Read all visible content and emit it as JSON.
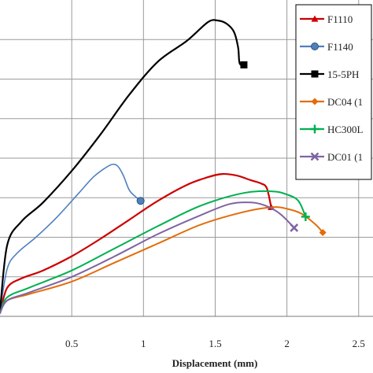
{
  "chart_data": {
    "type": "line",
    "xlabel": "Displacement (mm)",
    "ylabel": "",
    "xlim": [
      0,
      2.6
    ],
    "ylim": [
      0,
      20
    ],
    "x_ticks": [
      0.5,
      1,
      1.5,
      2,
      2.5
    ],
    "x_tick_labels": [
      "0.5",
      "1",
      "1.5",
      "2",
      "2.5"
    ],
    "grid": true,
    "legend_position": "top-right",
    "series": [
      {
        "name": "F1110",
        "color": "#cc0000",
        "marker": "triangle",
        "x": [
          0,
          0.05,
          0.15,
          0.3,
          0.5,
          0.7,
          0.9,
          1.1,
          1.3,
          1.45,
          1.55,
          1.65,
          1.75,
          1.82,
          1.86,
          1.89
        ],
        "y": [
          0.2,
          1.8,
          2.4,
          2.9,
          3.8,
          4.9,
          6.1,
          7.3,
          8.3,
          8.8,
          9.0,
          8.9,
          8.6,
          8.4,
          8.1,
          6.9
        ]
      },
      {
        "name": "F1140",
        "color": "#4f81bd",
        "marker": "circle",
        "x": [
          0,
          0.05,
          0.12,
          0.25,
          0.4,
          0.55,
          0.65,
          0.72,
          0.78,
          0.82,
          0.86,
          0.9,
          0.94,
          0.98
        ],
        "y": [
          0.3,
          3.0,
          4.0,
          5.0,
          6.3,
          7.8,
          8.8,
          9.3,
          9.6,
          9.5,
          8.9,
          8.0,
          7.6,
          7.3
        ]
      },
      {
        "name": "15-5PH",
        "color": "#000000",
        "marker": "square",
        "x": [
          0,
          0.05,
          0.15,
          0.3,
          0.5,
          0.7,
          0.9,
          1.1,
          1.3,
          1.45,
          1.52,
          1.58,
          1.63,
          1.66,
          1.67,
          1.7
        ],
        "y": [
          0.3,
          4.5,
          6.0,
          7.2,
          9.2,
          11.5,
          14.0,
          16.1,
          17.4,
          18.6,
          18.7,
          18.5,
          18.0,
          17.0,
          16.0,
          15.9
        ]
      },
      {
        "name": "DC04 (1",
        "color": "#e36c09",
        "marker": "diamond",
        "x": [
          0,
          0.05,
          0.2,
          0.5,
          0.8,
          1.1,
          1.4,
          1.7,
          1.9,
          2.0,
          2.1,
          2.2,
          2.25
        ],
        "y": [
          0.2,
          1.0,
          1.4,
          2.2,
          3.4,
          4.6,
          5.8,
          6.6,
          6.9,
          6.8,
          6.5,
          5.8,
          5.3
        ]
      },
      {
        "name": "HC300L",
        "color": "#00b050",
        "marker": "plus",
        "x": [
          0,
          0.05,
          0.2,
          0.5,
          0.8,
          1.1,
          1.4,
          1.7,
          1.9,
          2.0,
          2.08,
          2.13
        ],
        "y": [
          0.2,
          1.2,
          1.8,
          2.9,
          4.3,
          5.7,
          7.0,
          7.8,
          7.9,
          7.7,
          7.3,
          6.3
        ]
      },
      {
        "name": "DC01 (1",
        "color": "#8064a2",
        "marker": "x",
        "x": [
          0,
          0.05,
          0.2,
          0.5,
          0.8,
          1.1,
          1.4,
          1.6,
          1.75,
          1.85,
          1.95,
          2.05
        ],
        "y": [
          0.2,
          1.0,
          1.5,
          2.5,
          3.8,
          5.2,
          6.4,
          7.1,
          7.2,
          7.0,
          6.5,
          5.6
        ]
      }
    ]
  }
}
